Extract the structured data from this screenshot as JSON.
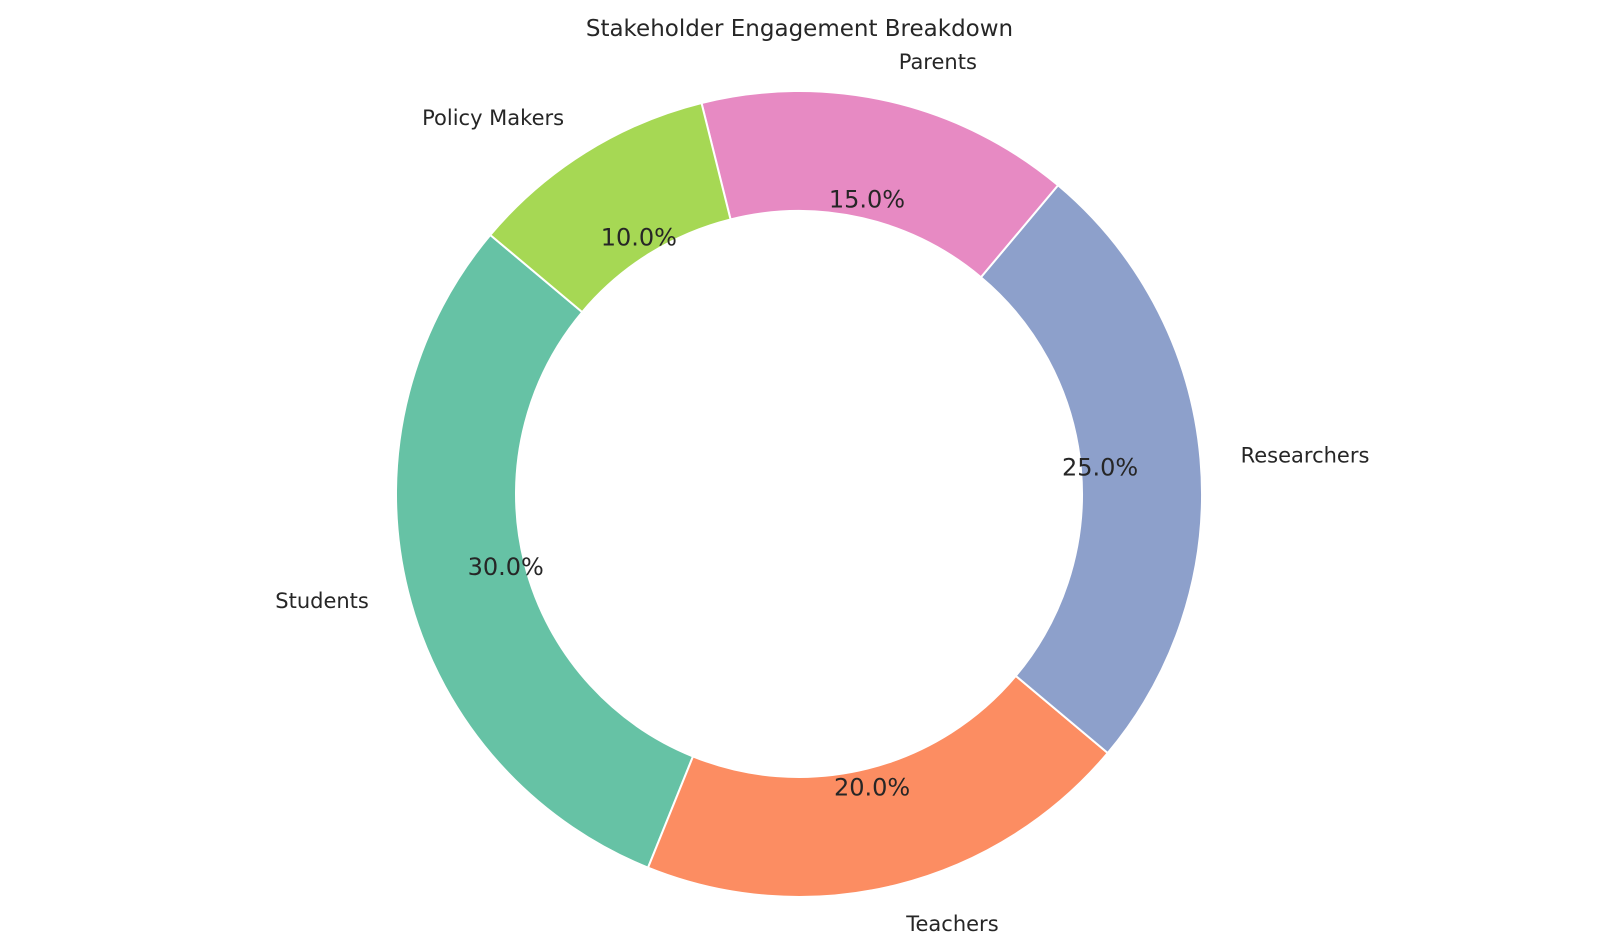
{
  "chart_data": {
    "type": "pie",
    "variant": "donut",
    "title": "Stakeholder Engagement Breakdown",
    "categories": [
      "Students",
      "Teachers",
      "Researchers",
      "Parents",
      "Policy Makers"
    ],
    "values": [
      30.0,
      20.0,
      25.0,
      15.0,
      10.0
    ],
    "percent_labels": [
      "30.0%",
      "20.0%",
      "25.0%",
      "15.0%",
      "10.0%"
    ],
    "colors": [
      "#66c2a5",
      "#fc8d62",
      "#8da0cb",
      "#e78ac3",
      "#a6d854"
    ],
    "legend": "none",
    "grid": false
  }
}
